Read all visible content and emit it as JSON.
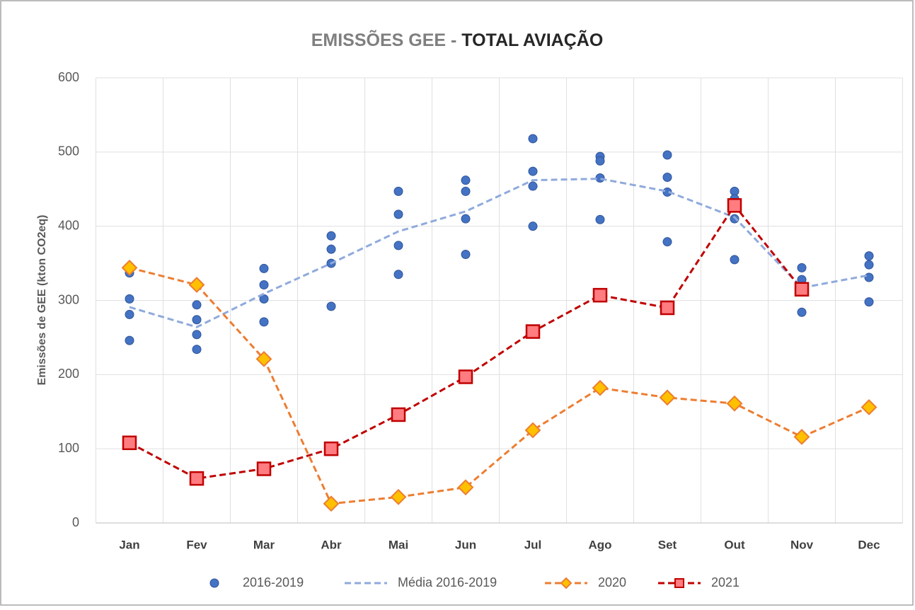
{
  "chart_data": {
    "type": "line",
    "title": [
      "EMISSÕES GEE -",
      "TOTAL AVIAÇÃO"
    ],
    "y_label": "Emissões de GEE (kton CO2eq)",
    "categories": [
      "Jan",
      "Fev",
      "Mar",
      "Abr",
      "Mai",
      "Jun",
      "Jul",
      "Ago",
      "Set",
      "Out",
      "Nov",
      "Dec"
    ],
    "ylim": [
      0,
      600
    ],
    "yticks": [
      0,
      100,
      200,
      300,
      400,
      500,
      600
    ],
    "grid": true,
    "legend": "bottom",
    "series": [
      {
        "name": "2016-2019",
        "kind": "scatter",
        "color": "#4472c4",
        "values": [
          [
            337,
            302,
            281,
            246
          ],
          [
            294,
            274,
            254,
            234
          ],
          [
            343,
            321,
            302,
            271
          ],
          [
            387,
            369,
            350,
            292
          ],
          [
            447,
            416,
            374,
            335
          ],
          [
            462,
            447,
            410,
            362
          ],
          [
            518,
            474,
            454,
            400
          ],
          [
            494,
            488,
            465,
            409
          ],
          [
            496,
            466,
            446,
            379
          ],
          [
            447,
            437,
            410,
            355
          ],
          [
            344,
            328,
            312,
            284
          ],
          [
            360,
            348,
            331,
            298
          ]
        ]
      },
      {
        "name": "Média 2016-2019",
        "kind": "line",
        "marker": "none",
        "color": "#8faadc",
        "values": [
          291,
          264,
          309,
          350,
          393,
          420,
          462,
          464,
          447,
          412,
          317,
          334
        ]
      },
      {
        "name": "2020",
        "kind": "line",
        "marker": "diamond",
        "color": "#ed7d31",
        "marker_fill": "#ffc000",
        "values": [
          344,
          321,
          221,
          26,
          35,
          48,
          125,
          182,
          169,
          161,
          116,
          156
        ]
      },
      {
        "name": "2021",
        "kind": "line",
        "marker": "square",
        "color": "#c00000",
        "marker_fill": "#ff7c80",
        "values": [
          108,
          60,
          73,
          100,
          146,
          197,
          258,
          307,
          290,
          428,
          315,
          null
        ]
      }
    ]
  }
}
